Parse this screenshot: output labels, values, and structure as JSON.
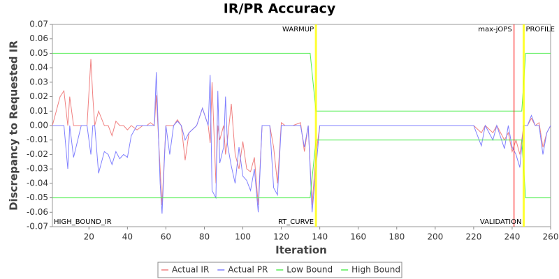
{
  "chart_data": {
    "type": "line",
    "title": "IR/PR Accuracy",
    "x_label": "Iteration",
    "y_label": "Discrepancy to Requested IR",
    "xlim": [
      1,
      260
    ],
    "ylim": [
      -0.07,
      0.07
    ],
    "xticks": [
      20,
      40,
      60,
      80,
      100,
      120,
      140,
      160,
      180,
      200,
      220,
      240,
      260
    ],
    "yticks": [
      -0.07,
      -0.06,
      -0.05,
      -0.04,
      -0.03,
      -0.02,
      -0.01,
      {
        "value": 0,
        "label": "0.00"
      },
      0.01,
      0.02,
      0.03,
      0.04,
      0.05,
      0.06,
      0.07
    ],
    "corner_label": "HIGH_BOUND_IR",
    "markers": [
      {
        "x": 138,
        "color": "#ffff00",
        "top_label": "WARMUP",
        "bottom_label": "RT_CURVE"
      },
      {
        "x": 241,
        "color": "#ff0000",
        "top_label": "max-jOPS"
      },
      {
        "x": 246,
        "color": "#ffff00",
        "top_label": "PROFILE",
        "bottom_label": "VALIDATION"
      }
    ],
    "series": [
      {
        "name": "Actual IR",
        "color": "#f08080",
        "x": [
          1,
          5,
          7,
          9,
          10,
          12,
          16,
          19,
          21,
          22,
          23,
          25,
          28,
          30,
          32,
          34,
          36,
          38,
          40,
          42,
          45,
          48,
          50,
          52,
          54,
          55,
          57,
          58,
          60,
          62,
          64,
          66,
          68,
          70,
          72,
          76,
          79,
          82,
          83,
          84,
          86,
          87,
          88,
          90,
          91,
          92,
          94,
          96,
          98,
          100,
          102,
          104,
          106,
          108,
          110,
          114,
          116,
          118,
          120,
          122,
          126,
          130,
          132,
          134,
          136,
          138,
          140,
          150,
          160,
          170,
          180,
          190,
          200,
          210,
          220,
          224,
          226,
          230,
          232,
          236,
          238,
          240,
          242,
          244,
          246,
          248,
          250,
          252,
          254,
          256,
          258,
          260
        ],
        "values": [
          0,
          0.02,
          0.024,
          0,
          0.02,
          0,
          0,
          0,
          0.046,
          0.02,
          0,
          0.01,
          0,
          0,
          -0.007,
          0.003,
          0,
          0,
          -0.003,
          0,
          -0.003,
          0,
          0,
          0.002,
          0,
          0.021,
          -0.03,
          -0.055,
          0,
          0,
          0,
          0.004,
          0,
          -0.024,
          -0.005,
          0,
          0.012,
          0,
          -0.012,
          0.03,
          -0.04,
          0,
          -0.01,
          0,
          -0.02,
          -0.01,
          0.015,
          -0.02,
          -0.03,
          -0.011,
          -0.03,
          -0.032,
          -0.022,
          -0.055,
          0,
          0,
          -0.015,
          -0.04,
          0.002,
          0,
          0,
          0.002,
          -0.018,
          0,
          -0.055,
          -0.02,
          0,
          0,
          0,
          0,
          0,
          0,
          0,
          0,
          0,
          -0.005,
          0,
          -0.005,
          0,
          -0.01,
          -0.005,
          -0.018,
          -0.01,
          -0.02,
          0,
          0,
          0.005,
          0,
          0.002,
          -0.015,
          -0.005,
          0
        ]
      },
      {
        "name": "Actual PR",
        "color": "#8080ff",
        "x": [
          1,
          5,
          7,
          9,
          10,
          12,
          16,
          19,
          21,
          22,
          23,
          25,
          28,
          30,
          32,
          34,
          36,
          38,
          40,
          42,
          45,
          48,
          50,
          52,
          54,
          55,
          57,
          58,
          60,
          62,
          64,
          66,
          68,
          70,
          72,
          76,
          79,
          82,
          83,
          84,
          86,
          87,
          88,
          90,
          91,
          92,
          94,
          96,
          98,
          100,
          102,
          104,
          106,
          108,
          110,
          114,
          116,
          118,
          120,
          122,
          126,
          130,
          132,
          134,
          136,
          138,
          140,
          150,
          160,
          170,
          180,
          190,
          200,
          210,
          220,
          224,
          226,
          230,
          232,
          236,
          238,
          240,
          242,
          244,
          246,
          248,
          250,
          252,
          254,
          256,
          258,
          260
        ],
        "values": [
          0,
          0,
          0,
          -0.03,
          0,
          -0.022,
          0,
          0,
          -0.02,
          0,
          0,
          -0.033,
          -0.018,
          -0.02,
          -0.027,
          -0.018,
          -0.023,
          -0.02,
          -0.022,
          -0.007,
          0,
          0,
          0,
          0,
          0,
          0.037,
          -0.04,
          -0.061,
          0,
          -0.02,
          0,
          0.003,
          0,
          -0.01,
          -0.005,
          0,
          0.012,
          0,
          0.035,
          -0.045,
          -0.05,
          0.024,
          -0.026,
          -0.015,
          0.02,
          -0.013,
          -0.028,
          -0.04,
          -0.015,
          -0.035,
          -0.038,
          -0.045,
          -0.03,
          -0.06,
          0,
          0,
          -0.043,
          -0.048,
          0,
          0,
          0,
          0,
          -0.015,
          0,
          -0.06,
          -0.03,
          0,
          0,
          0,
          0,
          0,
          0,
          0,
          0,
          0,
          -0.014,
          0,
          -0.01,
          0,
          -0.016,
          0,
          -0.015,
          -0.02,
          -0.029,
          0,
          0,
          0.007,
          0,
          0,
          -0.02,
          -0.005,
          0
        ]
      },
      {
        "name": "Low Bound",
        "color": "#55ee55",
        "x": [
          1,
          135,
          138,
          245,
          247,
          260
        ],
        "values": [
          -0.05,
          -0.05,
          -0.01,
          -0.01,
          -0.05,
          -0.05
        ]
      },
      {
        "name": "High Bound",
        "color": "#55ee55",
        "x": [
          1,
          135,
          138,
          245,
          247,
          260
        ],
        "values": [
          0.05,
          0.05,
          0.01,
          0.01,
          0.05,
          0.05
        ]
      }
    ]
  }
}
